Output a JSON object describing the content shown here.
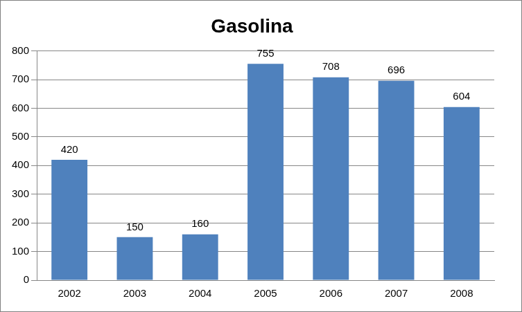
{
  "chart_data": {
    "type": "bar",
    "title": "Gasolina",
    "categories": [
      "2002",
      "2003",
      "2004",
      "2005",
      "2006",
      "2007",
      "2008"
    ],
    "values": [
      420,
      150,
      160,
      755,
      708,
      696,
      604
    ],
    "color": "#4f81bd",
    "ylim": [
      0,
      800
    ],
    "yticks": [
      0,
      100,
      200,
      300,
      400,
      500,
      600,
      700,
      800
    ],
    "grid": true,
    "data_labels": true
  }
}
